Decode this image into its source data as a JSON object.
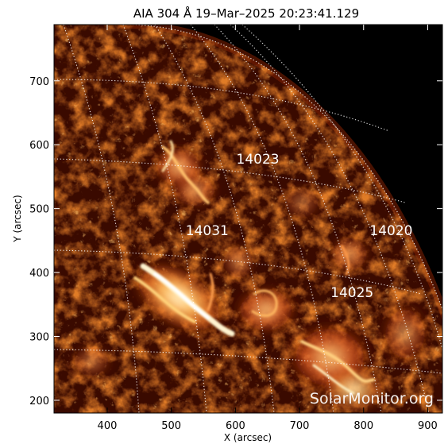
{
  "title": "AIA 304 Å 19–Mar–2025 20:23:41.129",
  "x_axis": {
    "label": "X (arcsec)",
    "ticks": [
      "400",
      "500",
      "600",
      "700",
      "800",
      "900"
    ],
    "range": [
      317,
      923
    ]
  },
  "y_axis": {
    "label": "Y (arcsec)",
    "ticks": [
      "200",
      "300",
      "400",
      "500",
      "600",
      "700"
    ],
    "range": [
      180,
      788
    ]
  },
  "regions": [
    {
      "label": "14023",
      "x": 635,
      "y": 578
    },
    {
      "label": "14031",
      "x": 556,
      "y": 466
    },
    {
      "label": "14020",
      "x": 843,
      "y": 466
    },
    {
      "label": "14025",
      "x": 782,
      "y": 369
    }
  ],
  "watermark": "SolarMonitor.org",
  "colors": {
    "background": "#000000",
    "disk_dark": "#3a0a00",
    "disk_mid": "#b83a08",
    "bright": "#ffd88a",
    "grid": "#ffffff"
  }
}
